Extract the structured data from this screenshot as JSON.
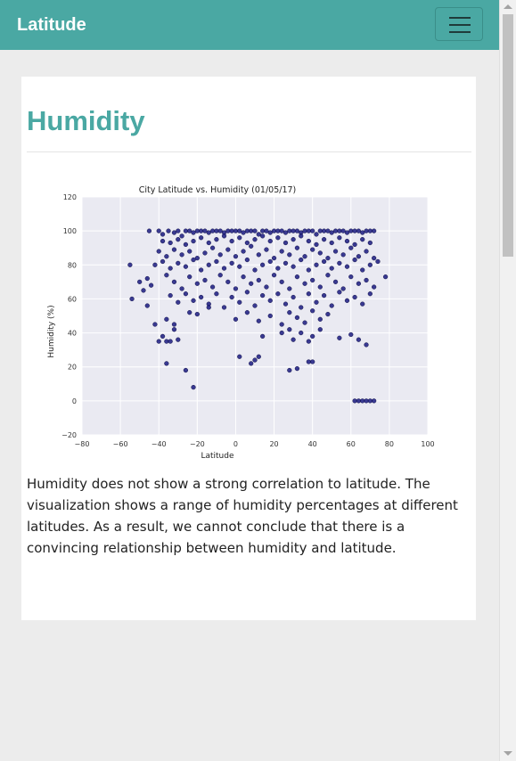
{
  "navbar": {
    "brand": "Latitude",
    "menu_icon": "hamburger-menu-icon",
    "color": "#4aa8a3"
  },
  "main": {
    "heading": "Humidity",
    "heading_color": "#4aa8a3",
    "description": "Humidity does not show a strong correlation to latitude. The visualization shows a range of humidity percentages at different latitudes. As a result, we cannot conclude that there is a convincing relationship between humidity and latitude."
  },
  "chart_data": {
    "type": "scatter",
    "title": "City Latitude vs. Humidity (01/05/17)",
    "xlabel": "Latitude",
    "ylabel": "Humidity (%)",
    "xlim": [
      -80,
      100
    ],
    "ylim": [
      -20,
      120
    ],
    "xticks": [
      -80,
      -60,
      -40,
      -20,
      0,
      20,
      40,
      60,
      80,
      100
    ],
    "yticks": [
      -20,
      0,
      20,
      40,
      60,
      80,
      100,
      120
    ],
    "grid": true,
    "background": "#eaeaf2",
    "marker_color": "#1a1a80",
    "points": [
      [
        -45,
        100
      ],
      [
        -40,
        100
      ],
      [
        -38,
        98
      ],
      [
        -35,
        100
      ],
      [
        -32,
        99
      ],
      [
        -30,
        100
      ],
      [
        -28,
        97
      ],
      [
        -26,
        100
      ],
      [
        -24,
        100
      ],
      [
        -22,
        99
      ],
      [
        -20,
        100
      ],
      [
        -18,
        100
      ],
      [
        -16,
        100
      ],
      [
        -14,
        99
      ],
      [
        -12,
        100
      ],
      [
        -10,
        100
      ],
      [
        -8,
        100
      ],
      [
        -6,
        99
      ],
      [
        -4,
        100
      ],
      [
        -2,
        100
      ],
      [
        0,
        100
      ],
      [
        2,
        100
      ],
      [
        4,
        99
      ],
      [
        6,
        100
      ],
      [
        8,
        100
      ],
      [
        10,
        100
      ],
      [
        12,
        98
      ],
      [
        14,
        100
      ],
      [
        16,
        100
      ],
      [
        18,
        99
      ],
      [
        20,
        100
      ],
      [
        22,
        100
      ],
      [
        24,
        100
      ],
      [
        26,
        99
      ],
      [
        28,
        100
      ],
      [
        30,
        100
      ],
      [
        32,
        100
      ],
      [
        34,
        99
      ],
      [
        36,
        100
      ],
      [
        38,
        100
      ],
      [
        40,
        100
      ],
      [
        42,
        98
      ],
      [
        44,
        100
      ],
      [
        46,
        100
      ],
      [
        48,
        100
      ],
      [
        50,
        99
      ],
      [
        52,
        100
      ],
      [
        54,
        100
      ],
      [
        56,
        100
      ],
      [
        58,
        99
      ],
      [
        60,
        100
      ],
      [
        62,
        100
      ],
      [
        64,
        100
      ],
      [
        66,
        99
      ],
      [
        68,
        100
      ],
      [
        70,
        100
      ],
      [
        72,
        100
      ],
      [
        -38,
        94
      ],
      [
        -34,
        93
      ],
      [
        -30,
        95
      ],
      [
        -26,
        92
      ],
      [
        -22,
        94
      ],
      [
        -18,
        96
      ],
      [
        -14,
        93
      ],
      [
        -10,
        95
      ],
      [
        -6,
        97
      ],
      [
        -2,
        94
      ],
      [
        2,
        96
      ],
      [
        6,
        93
      ],
      [
        10,
        95
      ],
      [
        14,
        97
      ],
      [
        18,
        94
      ],
      [
        22,
        96
      ],
      [
        26,
        93
      ],
      [
        30,
        95
      ],
      [
        34,
        97
      ],
      [
        38,
        94
      ],
      [
        42,
        92
      ],
      [
        46,
        95
      ],
      [
        50,
        93
      ],
      [
        54,
        96
      ],
      [
        58,
        94
      ],
      [
        62,
        92
      ],
      [
        66,
        95
      ],
      [
        70,
        93
      ],
      [
        -40,
        88
      ],
      [
        -36,
        85
      ],
      [
        -32,
        89
      ],
      [
        -28,
        86
      ],
      [
        -24,
        88
      ],
      [
        -20,
        84
      ],
      [
        -16,
        87
      ],
      [
        -12,
        90
      ],
      [
        -8,
        86
      ],
      [
        -4,
        89
      ],
      [
        0,
        85
      ],
      [
        4,
        88
      ],
      [
        8,
        91
      ],
      [
        12,
        86
      ],
      [
        16,
        89
      ],
      [
        20,
        84
      ],
      [
        24,
        88
      ],
      [
        28,
        86
      ],
      [
        32,
        90
      ],
      [
        36,
        85
      ],
      [
        40,
        89
      ],
      [
        44,
        87
      ],
      [
        48,
        84
      ],
      [
        52,
        88
      ],
      [
        56,
        86
      ],
      [
        60,
        90
      ],
      [
        64,
        85
      ],
      [
        68,
        88
      ],
      [
        72,
        84
      ],
      [
        -42,
        80
      ],
      [
        -38,
        82
      ],
      [
        -34,
        78
      ],
      [
        -30,
        81
      ],
      [
        -26,
        79
      ],
      [
        -22,
        83
      ],
      [
        -18,
        77
      ],
      [
        -14,
        80
      ],
      [
        -10,
        82
      ],
      [
        -6,
        78
      ],
      [
        -2,
        81
      ],
      [
        2,
        79
      ],
      [
        6,
        83
      ],
      [
        10,
        77
      ],
      [
        14,
        80
      ],
      [
        18,
        82
      ],
      [
        22,
        78
      ],
      [
        26,
        81
      ],
      [
        30,
        79
      ],
      [
        34,
        83
      ],
      [
        38,
        77
      ],
      [
        42,
        80
      ],
      [
        46,
        82
      ],
      [
        50,
        78
      ],
      [
        54,
        81
      ],
      [
        58,
        79
      ],
      [
        62,
        83
      ],
      [
        66,
        77
      ],
      [
        70,
        80
      ],
      [
        74,
        82
      ],
      [
        -55,
        80
      ],
      [
        -50,
        70
      ],
      [
        -48,
        65
      ],
      [
        -46,
        72
      ],
      [
        -44,
        68
      ],
      [
        -36,
        74
      ],
      [
        -32,
        70
      ],
      [
        -28,
        66
      ],
      [
        -24,
        73
      ],
      [
        -20,
        69
      ],
      [
        -16,
        71
      ],
      [
        -12,
        67
      ],
      [
        -8,
        74
      ],
      [
        -4,
        70
      ],
      [
        0,
        66
      ],
      [
        4,
        73
      ],
      [
        8,
        69
      ],
      [
        12,
        71
      ],
      [
        16,
        67
      ],
      [
        20,
        74
      ],
      [
        24,
        70
      ],
      [
        28,
        66
      ],
      [
        32,
        73
      ],
      [
        36,
        69
      ],
      [
        40,
        71
      ],
      [
        44,
        67
      ],
      [
        48,
        74
      ],
      [
        52,
        70
      ],
      [
        56,
        66
      ],
      [
        60,
        73
      ],
      [
        64,
        69
      ],
      [
        68,
        71
      ],
      [
        72,
        67
      ],
      [
        78,
        73
      ],
      [
        -54,
        60
      ],
      [
        -46,
        56
      ],
      [
        -34,
        62
      ],
      [
        -30,
        58
      ],
      [
        -26,
        63
      ],
      [
        -22,
        59
      ],
      [
        -18,
        61
      ],
      [
        -14,
        57
      ],
      [
        -10,
        63
      ],
      [
        -6,
        55
      ],
      [
        -2,
        61
      ],
      [
        2,
        58
      ],
      [
        6,
        64
      ],
      [
        10,
        56
      ],
      [
        14,
        62
      ],
      [
        18,
        59
      ],
      [
        22,
        63
      ],
      [
        26,
        57
      ],
      [
        30,
        61
      ],
      [
        34,
        55
      ],
      [
        38,
        63
      ],
      [
        42,
        58
      ],
      [
        46,
        62
      ],
      [
        50,
        56
      ],
      [
        54,
        64
      ],
      [
        58,
        59
      ],
      [
        62,
        61
      ],
      [
        66,
        57
      ],
      [
        70,
        63
      ],
      [
        -36,
        48
      ],
      [
        -32,
        45
      ],
      [
        -24,
        52
      ],
      [
        -20,
        51
      ],
      [
        -14,
        55
      ],
      [
        0,
        48
      ],
      [
        6,
        52
      ],
      [
        12,
        47
      ],
      [
        18,
        50
      ],
      [
        24,
        45
      ],
      [
        28,
        52
      ],
      [
        32,
        49
      ],
      [
        36,
        46
      ],
      [
        40,
        53
      ],
      [
        44,
        48
      ],
      [
        48,
        51
      ],
      [
        -42,
        45
      ],
      [
        -40,
        35
      ],
      [
        -38,
        38
      ],
      [
        -36,
        35
      ],
      [
        -34,
        35
      ],
      [
        -32,
        42
      ],
      [
        -30,
        36
      ],
      [
        14,
        38
      ],
      [
        24,
        40
      ],
      [
        28,
        42
      ],
      [
        30,
        36
      ],
      [
        34,
        40
      ],
      [
        38,
        35
      ],
      [
        40,
        38
      ],
      [
        44,
        42
      ],
      [
        54,
        37
      ],
      [
        60,
        39
      ],
      [
        64,
        36
      ],
      [
        68,
        33
      ],
      [
        -36,
        22
      ],
      [
        -26,
        18
      ],
      [
        -22,
        8
      ],
      [
        2,
        26
      ],
      [
        10,
        24
      ],
      [
        12,
        26
      ],
      [
        28,
        18
      ],
      [
        32,
        19
      ],
      [
        38,
        23
      ],
      [
        40,
        23
      ],
      [
        8,
        22
      ],
      [
        62,
        0
      ],
      [
        64,
        0
      ],
      [
        66,
        0
      ],
      [
        68,
        0
      ],
      [
        70,
        0
      ],
      [
        72,
        0
      ]
    ]
  }
}
